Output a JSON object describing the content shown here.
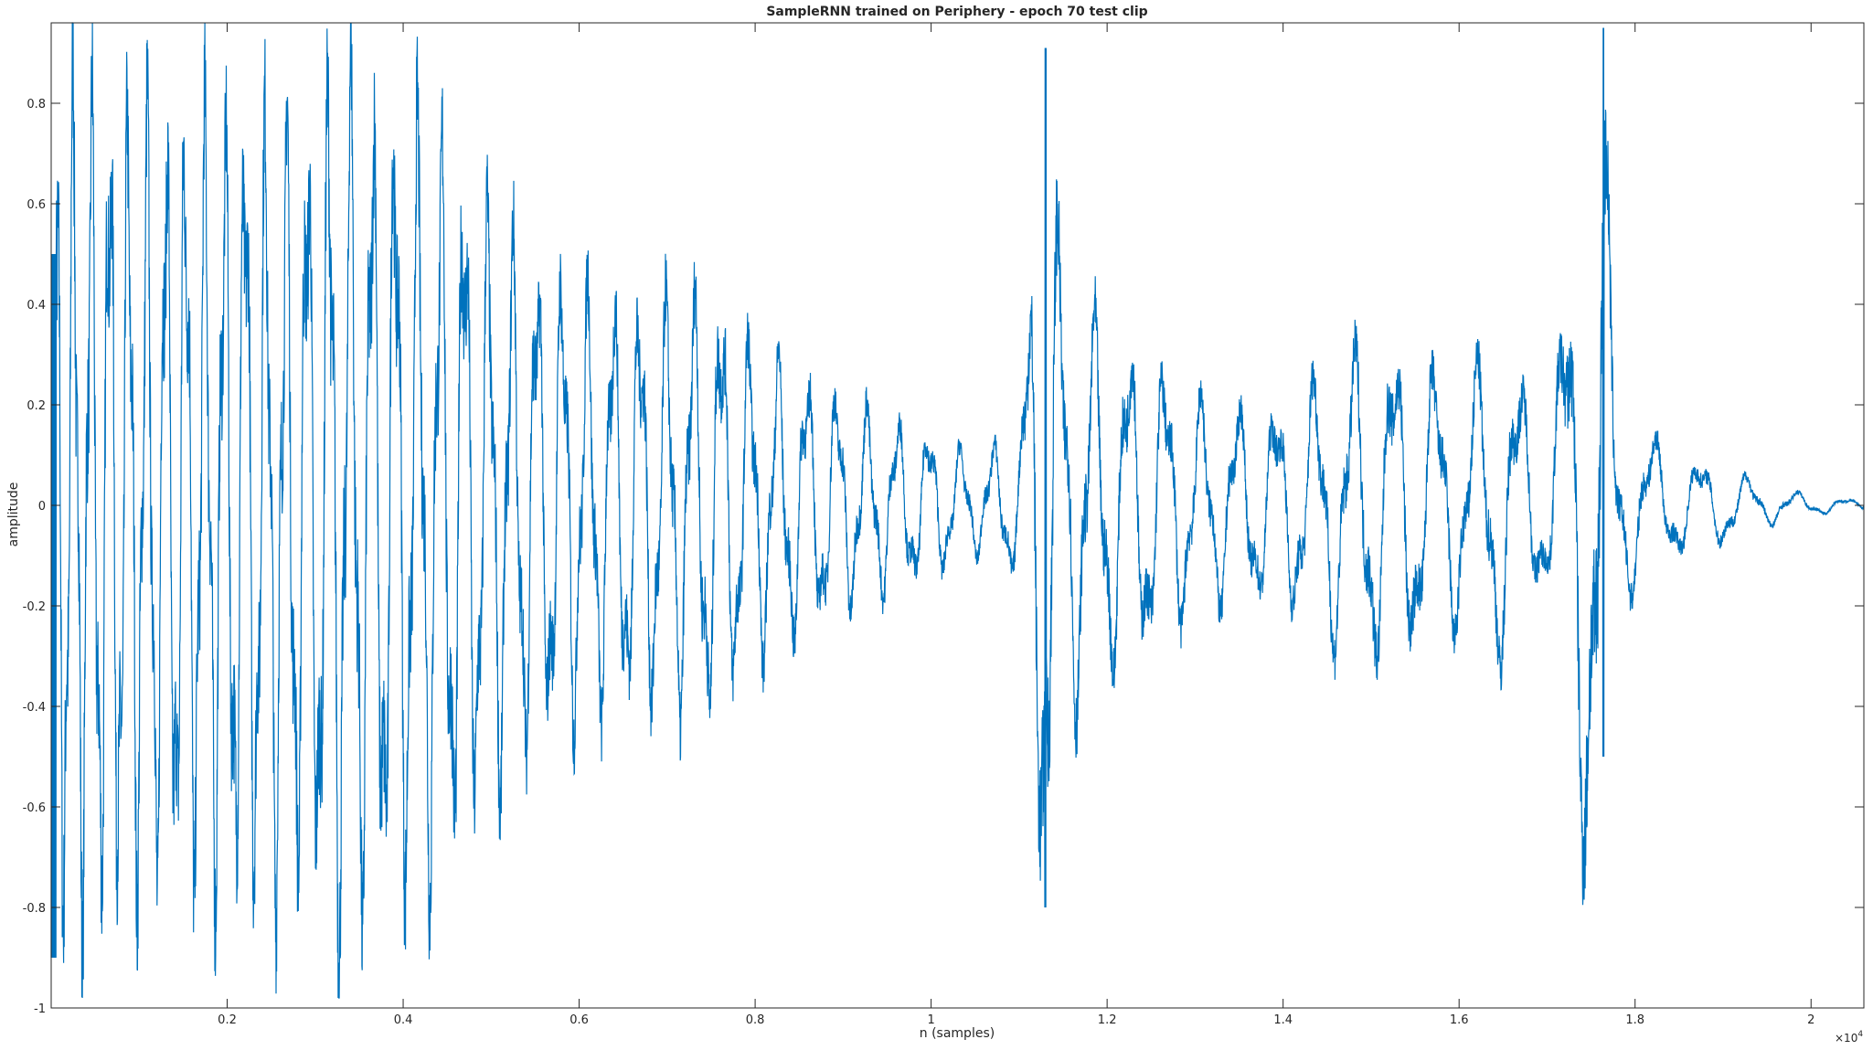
{
  "chart_data": {
    "type": "line",
    "title": "SampleRNN trained on Periphery - epoch 70 test clip",
    "xlabel": "n (samples)",
    "ylabel": "amplitude",
    "x_exponent_label": "×10",
    "x_exponent_power": "4",
    "xlim": [
      0,
      20600
    ],
    "ylim": [
      -1,
      0.96
    ],
    "grid": false,
    "x_ticks": [
      {
        "value": 2000,
        "label": "0.2"
      },
      {
        "value": 4000,
        "label": "0.4"
      },
      {
        "value": 6000,
        "label": "0.6"
      },
      {
        "value": 8000,
        "label": "0.8"
      },
      {
        "value": 10000,
        "label": "1"
      },
      {
        "value": 12000,
        "label": "1.2"
      },
      {
        "value": 14000,
        "label": "1.4"
      },
      {
        "value": 16000,
        "label": "1.6"
      },
      {
        "value": 18000,
        "label": "1.8"
      },
      {
        "value": 20000,
        "label": "2"
      }
    ],
    "y_ticks": [
      {
        "value": -1,
        "label": "-1"
      },
      {
        "value": -0.8,
        "label": "-0.8"
      },
      {
        "value": -0.6,
        "label": "-0.6"
      },
      {
        "value": -0.4,
        "label": "-0.4"
      },
      {
        "value": -0.2,
        "label": "-0.2"
      },
      {
        "value": 0,
        "label": "0"
      },
      {
        "value": 0.2,
        "label": "0.2"
      },
      {
        "value": 0.4,
        "label": "0.4"
      },
      {
        "value": 0.6,
        "label": "0.6"
      },
      {
        "value": 0.8,
        "label": "0.8"
      }
    ],
    "series": [
      {
        "color": "#0072bd",
        "description_envelope": [
          [
            0,
            0.9
          ],
          [
            300,
            0.88
          ],
          [
            1000,
            0.8
          ],
          [
            2000,
            0.8
          ],
          [
            3000,
            0.8
          ],
          [
            3200,
            0.92
          ],
          [
            4000,
            0.8
          ],
          [
            4500,
            0.75
          ],
          [
            5000,
            0.6
          ],
          [
            5500,
            0.5
          ],
          [
            6000,
            0.45
          ],
          [
            6500,
            0.42
          ],
          [
            7000,
            0.42
          ],
          [
            7500,
            0.45
          ],
          [
            8000,
            0.32
          ],
          [
            8500,
            0.28
          ],
          [
            9000,
            0.22
          ],
          [
            9500,
            0.18
          ],
          [
            10000,
            0.15
          ],
          [
            10500,
            0.1
          ],
          [
            11000,
            0.15
          ],
          [
            11300,
            0.92
          ],
          [
            11500,
            0.45
          ],
          [
            12000,
            0.35
          ],
          [
            12500,
            0.3
          ],
          [
            13000,
            0.22
          ],
          [
            13500,
            0.2
          ],
          [
            14000,
            0.2
          ],
          [
            14500,
            0.28
          ],
          [
            15000,
            0.33
          ],
          [
            15500,
            0.3
          ],
          [
            16000,
            0.25
          ],
          [
            16500,
            0.33
          ],
          [
            17000,
            0.15
          ],
          [
            17600,
            0.96
          ],
          [
            17800,
            0.2
          ],
          [
            18500,
            0.1
          ],
          [
            19000,
            0.08
          ],
          [
            19500,
            0.04
          ],
          [
            20000,
            0.02
          ],
          [
            20600,
            0.01
          ]
        ]
      }
    ]
  }
}
